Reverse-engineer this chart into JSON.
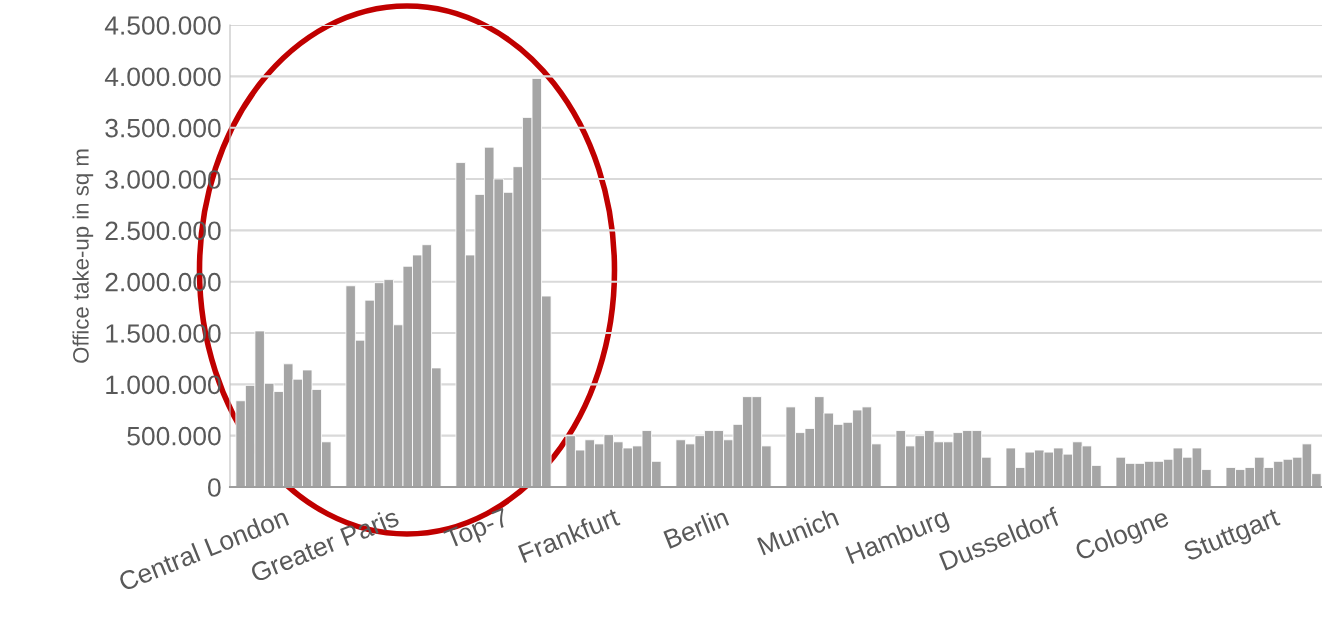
{
  "chart_data": {
    "type": "bar",
    "ylabel": "Office take-up in sq m",
    "categories": [
      "Central London",
      "Greater Paris",
      "Top-7",
      "Frankfurt",
      "Berlin",
      "Munich",
      "Hamburg",
      "Dusseldorf",
      "Cologne",
      "Stuttgart"
    ],
    "series": [
      {
        "color": "#a5a5a5",
        "values": [
          840000,
          1960000,
          3160000,
          500000,
          460000,
          780000,
          550000,
          380000,
          290000,
          190000
        ]
      },
      {
        "color": "#a5a5a5",
        "values": [
          990000,
          1430000,
          2260000,
          360000,
          420000,
          530000,
          400000,
          190000,
          230000,
          170000
        ]
      },
      {
        "color": "#a5a5a5",
        "values": [
          1520000,
          1820000,
          2850000,
          460000,
          500000,
          570000,
          500000,
          340000,
          230000,
          190000
        ]
      },
      {
        "color": "#a5a5a5",
        "values": [
          1010000,
          1990000,
          3310000,
          420000,
          550000,
          880000,
          550000,
          360000,
          250000,
          290000
        ]
      },
      {
        "color": "#a5a5a5",
        "values": [
          930000,
          2020000,
          3000000,
          510000,
          550000,
          720000,
          440000,
          340000,
          250000,
          190000
        ]
      },
      {
        "color": "#a5a5a5",
        "values": [
          1200000,
          1580000,
          2870000,
          440000,
          460000,
          610000,
          440000,
          380000,
          270000,
          250000
        ]
      },
      {
        "color": "#a5a5a5",
        "values": [
          1050000,
          2150000,
          3120000,
          380000,
          610000,
          630000,
          530000,
          320000,
          380000,
          270000
        ]
      },
      {
        "color": "#a5a5a5",
        "values": [
          1140000,
          2260000,
          3600000,
          400000,
          880000,
          750000,
          550000,
          440000,
          290000,
          290000
        ]
      },
      {
        "color": "#a5a5a5",
        "values": [
          950000,
          2360000,
          3980000,
          550000,
          880000,
          780000,
          550000,
          400000,
          380000,
          420000
        ]
      },
      {
        "color": "#a5a5a5",
        "values": [
          440000,
          1160000,
          1860000,
          250000,
          400000,
          420000,
          290000,
          210000,
          170000,
          130000
        ]
      }
    ],
    "ylim": [
      0,
      4500000
    ],
    "yticks": [
      {
        "value": 0,
        "label": "0"
      },
      {
        "value": 500000,
        "label": "500.000"
      },
      {
        "value": 1000000,
        "label": "1.000.000"
      },
      {
        "value": 1500000,
        "label": "1.500.000"
      },
      {
        "value": 2000000,
        "label": "2.000.000"
      },
      {
        "value": 2500000,
        "label": "2.500.000"
      },
      {
        "value": 3000000,
        "label": "3.000.000"
      },
      {
        "value": 3500000,
        "label": "3.500.000"
      },
      {
        "value": 4000000,
        "label": "4.000.000"
      },
      {
        "value": 4500000,
        "label": "4.500.000"
      }
    ],
    "grid": "y",
    "legend": false
  }
}
